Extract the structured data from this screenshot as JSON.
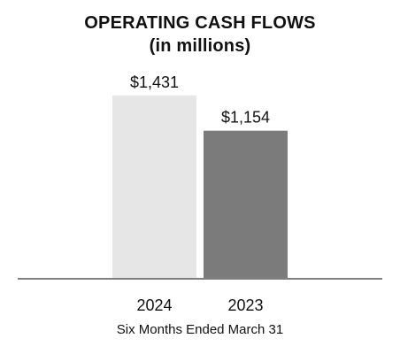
{
  "chart_data": {
    "type": "bar",
    "title": "OPERATING CASH FLOWS",
    "subtitle": "(in millions)",
    "categories": [
      "2024",
      "2023"
    ],
    "values": [
      1431,
      1154
    ],
    "data_labels": [
      "$1,431",
      "$1,154"
    ],
    "xlabel": "Six Months Ended March 31",
    "ylabel": "",
    "ylim": [
      0,
      1700
    ],
    "grid": false,
    "legend": "none",
    "colors": {
      "bars": [
        "#e6e6e6",
        "#7b7b7b"
      ],
      "baseline": "#7f7f7f",
      "text": "#111111"
    }
  }
}
